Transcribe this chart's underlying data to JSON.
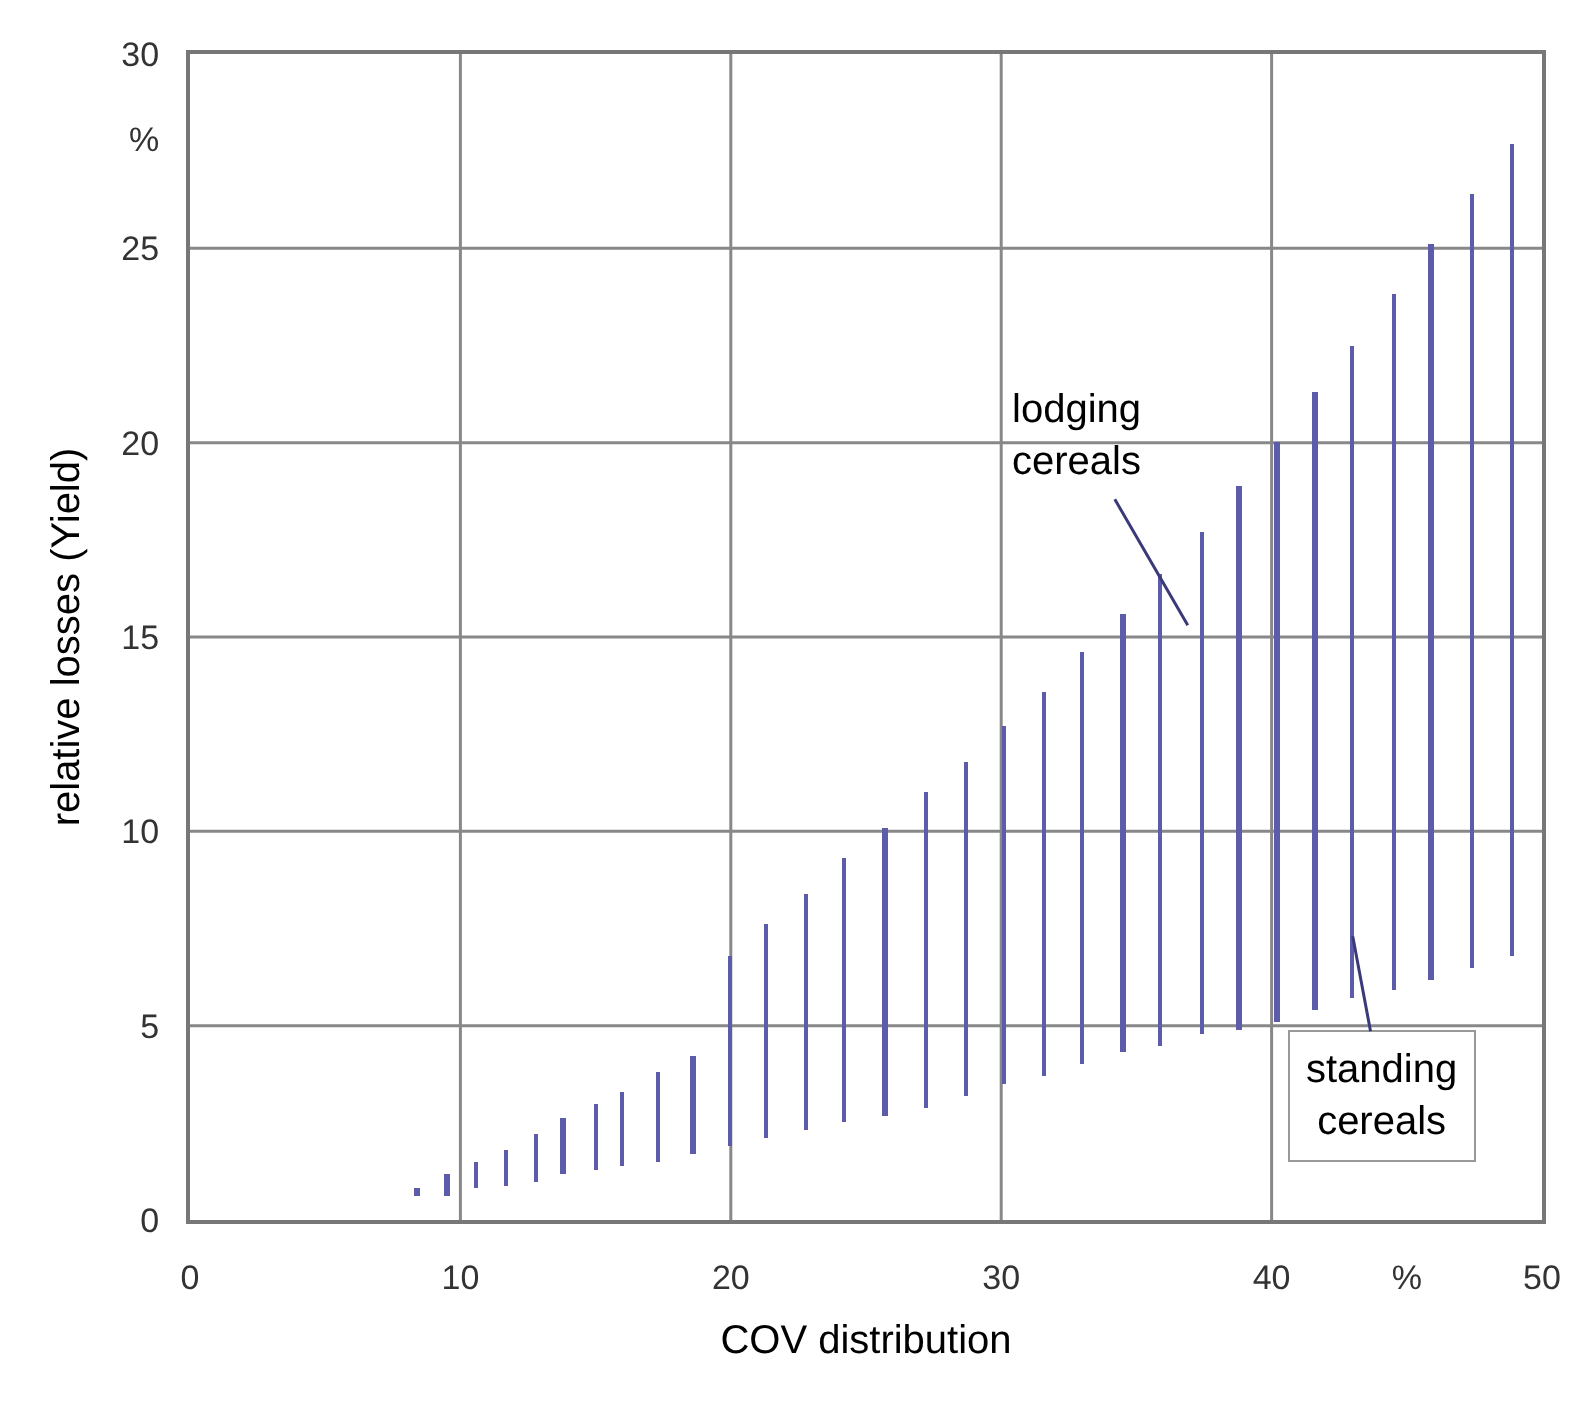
{
  "chart_data": {
    "type": "bar",
    "xlabel": "COV distribution",
    "ylabel": "relative losses (Yield)",
    "x": [
      8.4,
      9.5,
      10.6,
      11.7,
      12.8,
      13.8,
      15.0,
      16.0,
      17.3,
      18.6,
      20.0,
      21.3,
      22.8,
      24.2,
      25.7,
      27.2,
      28.7,
      30.1,
      31.6,
      33.0,
      34.5,
      35.9,
      37.4,
      38.8,
      40.2,
      41.6,
      43.0,
      44.5,
      45.9,
      47.4,
      48.9
    ],
    "base": [
      0.6,
      0.6,
      0.8,
      0.9,
      1.0,
      1.2,
      1.3,
      1.4,
      1.5,
      1.7,
      1.9,
      2.1,
      2.3,
      2.5,
      2.7,
      2.9,
      3.2,
      3.5,
      3.7,
      4.0,
      4.3,
      4.5,
      4.8,
      4.9,
      5.1,
      5.4,
      5.7,
      5.9,
      6.2,
      6.5,
      6.8
    ],
    "values": [
      0.2,
      0.6,
      0.7,
      0.9,
      1.2,
      1.4,
      1.7,
      1.9,
      2.3,
      2.5,
      4.9,
      5.5,
      6.1,
      6.8,
      7.4,
      8.1,
      8.6,
      9.2,
      9.9,
      10.6,
      11.3,
      12.1,
      12.9,
      14.0,
      14.9,
      15.9,
      16.8,
      17.9,
      18.9,
      19.9,
      20.9
    ],
    "color": "#5c5cab",
    "xlim": [
      0,
      50
    ],
    "ylim": [
      0,
      30
    ],
    "xticks": [
      0,
      10,
      20,
      30,
      40,
      {
        "value": 45,
        "label": "%"
      },
      50
    ],
    "yticks": [
      0,
      5,
      10,
      15,
      20,
      25,
      {
        "value": 27.8,
        "label": "%"
      },
      30
    ],
    "grid": true,
    "annotations": [
      "lodging cereals",
      {
        "text": "standing cereals",
        "x": 43.0,
        "y": 7.3
      }
    ]
  }
}
